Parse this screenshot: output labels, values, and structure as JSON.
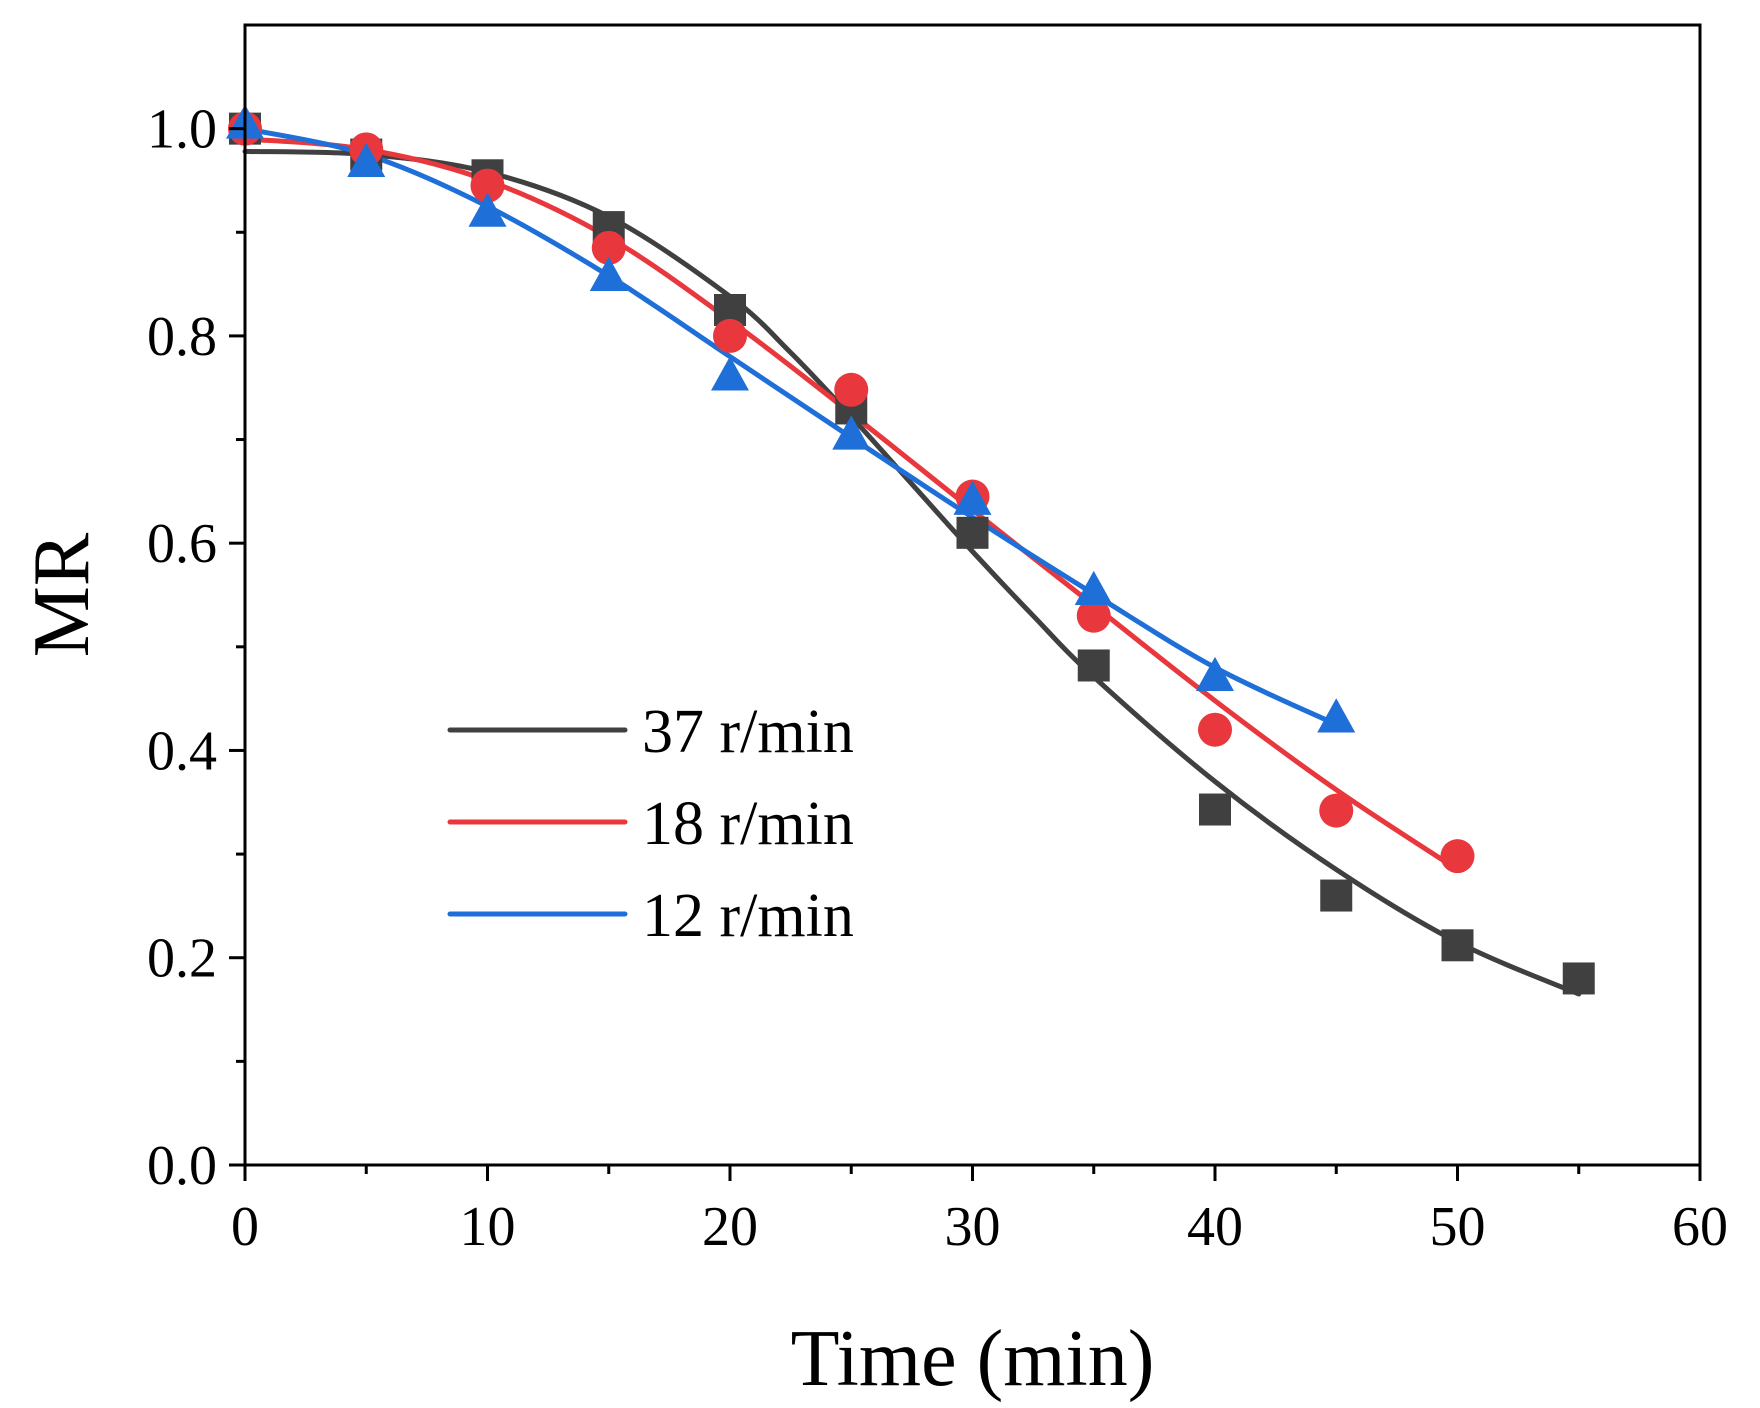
{
  "chart_data": {
    "type": "scatter",
    "title": "",
    "xlabel": "Time (min)",
    "ylabel": "MR",
    "xlim": [
      0,
      60
    ],
    "ylim": [
      0,
      1.1
    ],
    "xticks": [
      0,
      10,
      20,
      30,
      40,
      50,
      60
    ],
    "yticks": [
      0.0,
      0.2,
      0.4,
      0.6,
      0.8,
      1.0
    ],
    "xtick_labels": [
      "0",
      "10",
      "20",
      "30",
      "40",
      "50",
      "60"
    ],
    "ytick_labels": [
      "0.0",
      "0.2",
      "0.4",
      "0.6",
      "0.8",
      "1.0"
    ],
    "grid": false,
    "legend_position": "lower-left",
    "series": [
      {
        "name": "37 r/min",
        "color": "#404040",
        "marker": "square",
        "x": [
          0,
          5,
          10,
          15,
          20,
          25,
          30,
          35,
          40,
          45,
          50,
          55
        ],
        "y": [
          1.0,
          0.975,
          0.955,
          0.905,
          0.825,
          0.73,
          0.61,
          0.482,
          0.343,
          0.26,
          0.212,
          0.18
        ],
        "fit": {
          "x": [
            0,
            5,
            10,
            15,
            20,
            22.5,
            25,
            27.5,
            30,
            32.5,
            35,
            40,
            45,
            50,
            55
          ],
          "y": [
            0.978,
            0.975,
            0.958,
            0.915,
            0.838,
            0.784,
            0.722,
            0.657,
            0.592,
            0.53,
            0.471,
            0.37,
            0.285,
            0.215,
            0.165
          ]
        }
      },
      {
        "name": "18 r/min",
        "color": "#e8383d",
        "marker": "circle",
        "x": [
          0,
          5,
          10,
          15,
          20,
          25,
          30,
          35,
          40,
          45,
          50
        ],
        "y": [
          1.0,
          0.98,
          0.945,
          0.885,
          0.8,
          0.748,
          0.645,
          0.53,
          0.42,
          0.342,
          0.298
        ],
        "fit": {
          "x": [
            0,
            5,
            10,
            15,
            20,
            25,
            30,
            35,
            40,
            45,
            50
          ],
          "y": [
            0.99,
            0.98,
            0.95,
            0.895,
            0.815,
            0.725,
            0.632,
            0.54,
            0.448,
            0.362,
            0.285
          ]
        }
      },
      {
        "name": "12 r/min",
        "color": "#1f6fd8",
        "marker": "triangle",
        "x": [
          0,
          5,
          10,
          15,
          20,
          25,
          30,
          35,
          40,
          45
        ],
        "y": [
          1.005,
          0.968,
          0.92,
          0.858,
          0.762,
          0.705,
          0.642,
          0.555,
          0.472,
          0.432
        ],
        "fit": {
          "x": [
            0,
            5,
            10,
            15,
            20,
            25,
            30,
            35,
            40,
            45
          ],
          "y": [
            1.0,
            0.975,
            0.925,
            0.858,
            0.78,
            0.702,
            0.625,
            0.551,
            0.48,
            0.425
          ]
        }
      }
    ]
  }
}
